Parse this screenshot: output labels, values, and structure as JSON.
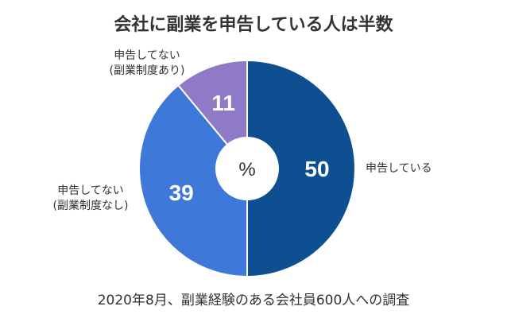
{
  "chart_data": {
    "type": "pie",
    "style": "donut",
    "title": "会社に副業を申告している人は半数",
    "center_label": "%",
    "slices": [
      {
        "label_lines": [
          "申告している"
        ],
        "value": 50,
        "value_label": "50",
        "color": "#0D4F91"
      },
      {
        "label_lines": [
          "申告してない",
          "(副業制度なし)"
        ],
        "value": 39,
        "value_label": "39",
        "color": "#3E79D9"
      },
      {
        "label_lines": [
          "申告してない",
          "(副業制度あり)"
        ],
        "value": 11,
        "value_label": "11",
        "color": "#8E7AC7"
      }
    ],
    "note": "2020年8月、副業経験のある会社員600人への調査"
  }
}
